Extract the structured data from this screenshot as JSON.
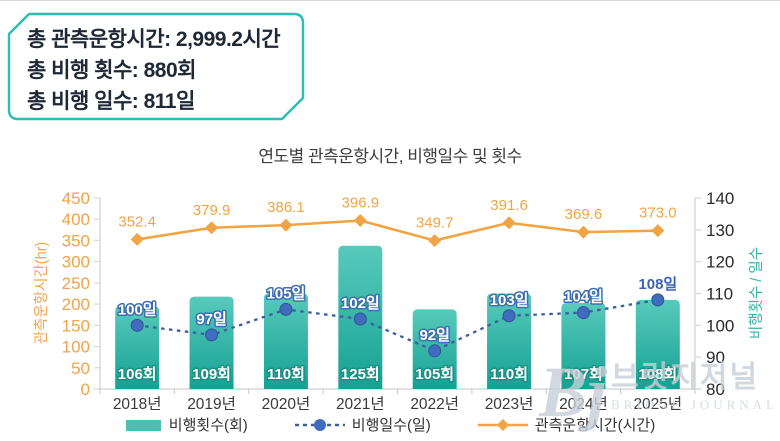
{
  "summary_box": {
    "lines": [
      "총 관측운항시간: 2,999.2시간",
      "총 비행 횟수: 880회",
      "총 비행 일수: 811일"
    ],
    "border_color": "#2dbdb3"
  },
  "chart_data": {
    "type": "combo-bar-line",
    "title": "연도별 관측운항시간, 비행일수 및 횟수",
    "categories": [
      "2018년",
      "2019년",
      "2020년",
      "2021년",
      "2022년",
      "2023년",
      "2024년",
      "2025년"
    ],
    "series": [
      {
        "name": "비행횟수(회)",
        "kind": "bar",
        "axis": "right",
        "values": [
          106,
          109,
          110,
          125,
          105,
          110,
          107,
          108
        ],
        "labels": [
          "106회",
          "109회",
          "110회",
          "125회",
          "105회",
          "110회",
          "107회",
          "108회"
        ],
        "color_top": "#58cabc",
        "color_bottom": "#15a193",
        "legend_color": "#4cbfb1",
        "label_color": "#ffffff",
        "label_outline": "#1e8e85"
      },
      {
        "name": "비행일수(일)",
        "kind": "dashed-line",
        "axis": "right",
        "values": [
          100,
          97,
          105,
          102,
          92,
          103,
          104,
          108
        ],
        "labels": [
          "100일",
          "97일",
          "105일",
          "102일",
          "92일",
          "103일",
          "104일",
          "108일"
        ],
        "color": "#3d5f9f",
        "marker_color": "#3f6cbd",
        "label_color": "#ffffff",
        "label_outline": "#3d6fb0",
        "label_plain_color": "#3b63b5"
      },
      {
        "name": "관측운항시간(시간)",
        "kind": "line",
        "axis": "left",
        "values": [
          352.4,
          379.9,
          386.1,
          396.9,
          349.7,
          391.6,
          369.6,
          373.0
        ],
        "labels": [
          "352.4",
          "379.9",
          "386.1",
          "396.9",
          "349.7",
          "391.6",
          "369.6",
          "373.0"
        ],
        "color": "#f2a444"
      }
    ],
    "left_axis": {
      "title": "관측운항시간(hr)",
      "min": 0,
      "max": 450,
      "step": 50,
      "color": "#f0a348"
    },
    "right_axis": {
      "title": "비행횟수 / 일수",
      "min": 80,
      "max": 140,
      "step": 10,
      "color": "#36b2a7",
      "tick_color": "#2a2a2a"
    },
    "x_axis": {
      "tick_color": "#3a3a3a"
    },
    "grid": false,
    "legend_position": "bottom"
  },
  "watermark": {
    "logo": "Bj",
    "korean": "브릿지저널",
    "english": "BRIDGE JOURNAL"
  }
}
